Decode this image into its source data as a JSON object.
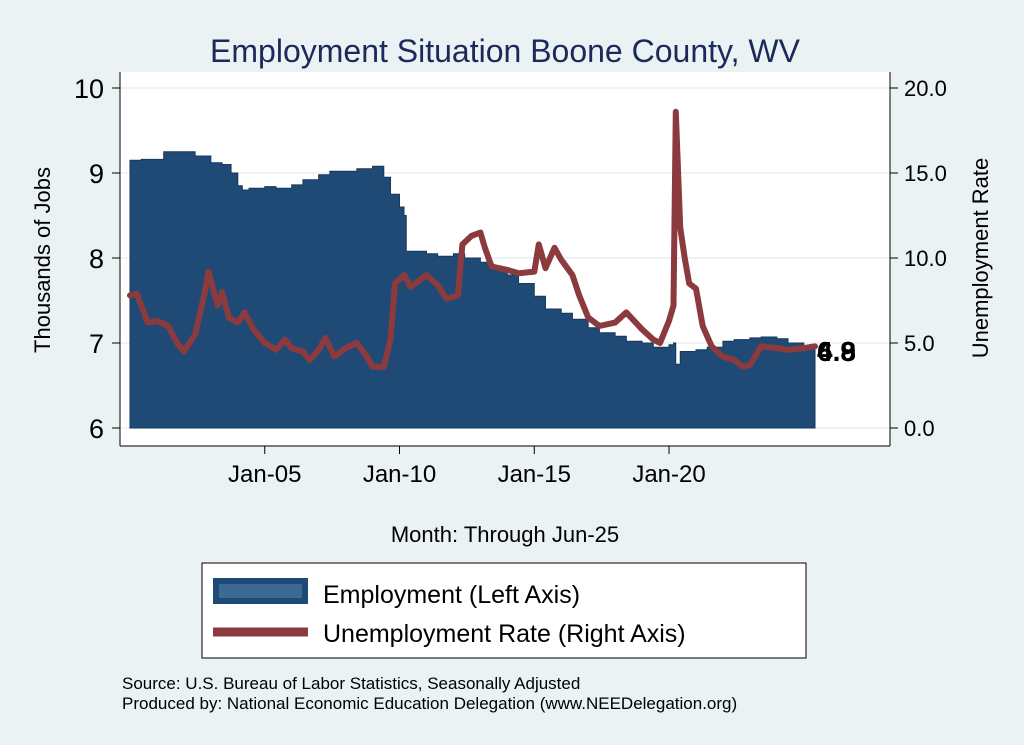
{
  "chart_data": {
    "type": "area+line",
    "title": "Employment Situation Boone  County, WV",
    "xlabel": "Month: Through Jun-25",
    "ylabel": "Thousands of Jobs",
    "y2label": "Unemployment Rate",
    "xticks": [
      "Jan-05",
      "Jan-10",
      "Jan-15",
      "Jan-20"
    ],
    "yticks": [
      "6",
      "7",
      "8",
      "9",
      "10"
    ],
    "y2ticks": [
      "0.0",
      "5.0",
      "10.0",
      "15.0",
      "20.0"
    ],
    "ylim": [
      6,
      10
    ],
    "y2lim": [
      0,
      20
    ],
    "xlim": [
      "2000-01",
      "2025-06"
    ],
    "grid": true,
    "legend_position": "bottom",
    "legend": [
      {
        "name": "Employment (Left Axis)",
        "key": "employment"
      },
      {
        "name": "Unemployment Rate (Right Axis)",
        "key": "unemployment"
      }
    ],
    "end_labels": [
      "6.9",
      "4.8"
    ],
    "series": [
      {
        "name": "Employment (Left Axis)",
        "axis": "left",
        "color": "#1f4a75",
        "points": [
          [
            "2000-01",
            9.15
          ],
          [
            "2000-06",
            9.16
          ],
          [
            "2001-01",
            9.16
          ],
          [
            "2001-04",
            9.25
          ],
          [
            "2002-01",
            9.25
          ],
          [
            "2002-06",
            9.2
          ],
          [
            "2003-01",
            9.12
          ],
          [
            "2003-06",
            9.1
          ],
          [
            "2003-10",
            9.0
          ],
          [
            "2004-01",
            8.85
          ],
          [
            "2004-03",
            8.8
          ],
          [
            "2004-06",
            8.82
          ],
          [
            "2005-01",
            8.84
          ],
          [
            "2005-06",
            8.82
          ],
          [
            "2006-01",
            8.86
          ],
          [
            "2006-06",
            8.92
          ],
          [
            "2007-01",
            8.98
          ],
          [
            "2007-06",
            9.02
          ],
          [
            "2008-01",
            9.02
          ],
          [
            "2008-06",
            9.05
          ],
          [
            "2009-01",
            9.08
          ],
          [
            "2009-06",
            8.95
          ],
          [
            "2009-09",
            8.75
          ],
          [
            "2010-01",
            8.6
          ],
          [
            "2010-03",
            8.5
          ],
          [
            "2010-04",
            8.08
          ],
          [
            "2011-01",
            8.05
          ],
          [
            "2011-06",
            8.02
          ],
          [
            "2012-01",
            8.05
          ],
          [
            "2012-06",
            8.0
          ],
          [
            "2013-01",
            7.95
          ],
          [
            "2013-06",
            7.88
          ],
          [
            "2014-01",
            7.8
          ],
          [
            "2014-06",
            7.7
          ],
          [
            "2015-01",
            7.55
          ],
          [
            "2015-06",
            7.4
          ],
          [
            "2016-01",
            7.35
          ],
          [
            "2016-06",
            7.28
          ],
          [
            "2017-01",
            7.18
          ],
          [
            "2017-06",
            7.12
          ],
          [
            "2018-01",
            7.08
          ],
          [
            "2018-06",
            7.02
          ],
          [
            "2019-01",
            7.0
          ],
          [
            "2019-06",
            6.95
          ],
          [
            "2020-01",
            6.98
          ],
          [
            "2020-03",
            7.0
          ],
          [
            "2020-04",
            6.75
          ],
          [
            "2020-06",
            6.9
          ],
          [
            "2021-01",
            6.92
          ],
          [
            "2021-06",
            6.95
          ],
          [
            "2022-01",
            7.02
          ],
          [
            "2022-06",
            7.04
          ],
          [
            "2023-01",
            7.06
          ],
          [
            "2023-06",
            7.07
          ],
          [
            "2024-01",
            7.05
          ],
          [
            "2024-06",
            7.0
          ],
          [
            "2025-01",
            6.95
          ],
          [
            "2025-06",
            6.9
          ]
        ]
      },
      {
        "name": "Unemployment Rate (Right Axis)",
        "axis": "right",
        "color": "#8b3a3e",
        "points": [
          [
            "2000-01",
            7.8
          ],
          [
            "2000-04",
            7.9
          ],
          [
            "2000-09",
            6.2
          ],
          [
            "2001-01",
            6.3
          ],
          [
            "2001-06",
            6.0
          ],
          [
            "2001-10",
            5.0
          ],
          [
            "2002-01",
            4.5
          ],
          [
            "2002-06",
            5.5
          ],
          [
            "2002-10",
            7.8
          ],
          [
            "2002-12",
            9.2
          ],
          [
            "2003-02",
            8.2
          ],
          [
            "2003-04",
            7.2
          ],
          [
            "2003-06",
            8.0
          ],
          [
            "2003-09",
            6.5
          ],
          [
            "2004-01",
            6.2
          ],
          [
            "2004-04",
            6.8
          ],
          [
            "2004-08",
            5.8
          ],
          [
            "2005-01",
            5.0
          ],
          [
            "2005-06",
            4.6
          ],
          [
            "2005-10",
            5.2
          ],
          [
            "2006-01",
            4.7
          ],
          [
            "2006-06",
            4.5
          ],
          [
            "2006-09",
            4.0
          ],
          [
            "2007-01",
            4.6
          ],
          [
            "2007-04",
            5.3
          ],
          [
            "2007-08",
            4.2
          ],
          [
            "2008-01",
            4.7
          ],
          [
            "2008-06",
            5.0
          ],
          [
            "2008-10",
            4.3
          ],
          [
            "2009-01",
            3.6
          ],
          [
            "2009-06",
            3.6
          ],
          [
            "2009-09",
            5.2
          ],
          [
            "2009-11",
            8.5
          ],
          [
            "2010-03",
            9.0
          ],
          [
            "2010-06",
            8.3
          ],
          [
            "2011-01",
            9.0
          ],
          [
            "2011-06",
            8.4
          ],
          [
            "2011-10",
            7.6
          ],
          [
            "2012-03",
            7.8
          ],
          [
            "2012-05",
            10.8
          ],
          [
            "2012-09",
            11.3
          ],
          [
            "2013-01",
            11.5
          ],
          [
            "2013-03",
            10.6
          ],
          [
            "2013-06",
            9.5
          ],
          [
            "2014-01",
            9.3
          ],
          [
            "2014-06",
            9.1
          ],
          [
            "2015-01",
            9.2
          ],
          [
            "2015-03",
            10.8
          ],
          [
            "2015-06",
            9.4
          ],
          [
            "2015-10",
            10.6
          ],
          [
            "2016-01",
            9.9
          ],
          [
            "2016-06",
            9.0
          ],
          [
            "2016-09",
            7.8
          ],
          [
            "2017-01",
            6.5
          ],
          [
            "2017-06",
            6.0
          ],
          [
            "2018-01",
            6.2
          ],
          [
            "2018-06",
            6.8
          ],
          [
            "2019-01",
            5.8
          ],
          [
            "2019-06",
            5.2
          ],
          [
            "2019-09",
            5.0
          ],
          [
            "2020-01",
            6.3
          ],
          [
            "2020-03",
            7.2
          ],
          [
            "2020-04",
            18.6
          ],
          [
            "2020-06",
            11.8
          ],
          [
            "2020-08",
            10.0
          ],
          [
            "2020-10",
            8.5
          ],
          [
            "2021-01",
            8.2
          ],
          [
            "2021-04",
            6.0
          ],
          [
            "2021-08",
            4.8
          ],
          [
            "2022-01",
            4.2
          ],
          [
            "2022-06",
            4.0
          ],
          [
            "2022-10",
            3.6
          ],
          [
            "2023-01",
            3.7
          ],
          [
            "2023-06",
            4.8
          ],
          [
            "2024-01",
            4.7
          ],
          [
            "2024-06",
            4.6
          ],
          [
            "2025-01",
            4.7
          ],
          [
            "2025-06",
            4.8
          ]
        ]
      }
    ]
  },
  "source": "Source: U.S. Bureau of Labor Statistics, Seasonally Adjusted",
  "producer": "Produced by: National Economic Education Delegation (www.NEEDelegation.org)",
  "colors": {
    "background": "#eaf2f3",
    "employment": "#1f4a75",
    "unemployment": "#8b3a3e",
    "title": "#1b2a5a"
  }
}
